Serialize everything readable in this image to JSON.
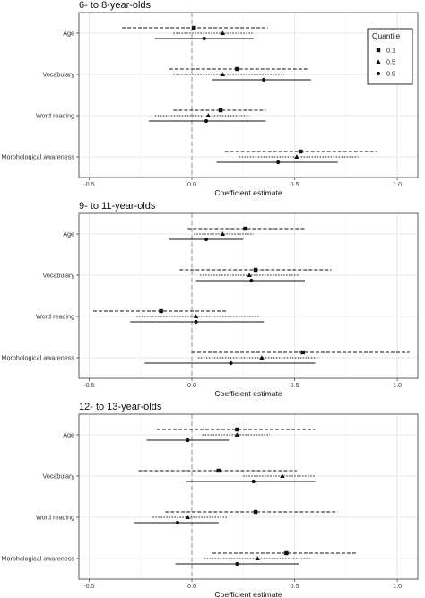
{
  "chart_data": [
    {
      "type": "forest",
      "title": "6- to 8-year-olds",
      "xlabel": "Coefficient estimate",
      "xlim": [
        -0.55,
        1.1
      ],
      "xticks": [
        -0.5,
        0.0,
        0.5,
        1.0
      ],
      "tick_labels": [
        "-0.5",
        "0.0",
        "0.5",
        "1.0"
      ],
      "reference_line": 0,
      "categories": [
        "Age",
        "Vocabulary",
        "Word reading",
        "Morphological awareness"
      ],
      "series": [
        {
          "name": "0.1",
          "linestyle": "dashed",
          "marker": "square",
          "estimates": [
            0.01,
            0.22,
            0.14,
            0.53
          ],
          "lower": [
            -0.34,
            -0.11,
            -0.09,
            0.16
          ],
          "upper": [
            0.37,
            0.57,
            0.36,
            0.9
          ]
        },
        {
          "name": "0.5",
          "linestyle": "dotted",
          "marker": "triangle",
          "estimates": [
            0.15,
            0.15,
            0.08,
            0.51
          ],
          "lower": [
            -0.09,
            -0.09,
            -0.18,
            0.23
          ],
          "upper": [
            0.3,
            0.45,
            0.28,
            0.81
          ]
        },
        {
          "name": "0.9",
          "linestyle": "solid",
          "marker": "circle",
          "estimates": [
            0.06,
            0.35,
            0.07,
            0.42
          ],
          "lower": [
            -0.18,
            0.1,
            -0.21,
            0.12
          ],
          "upper": [
            0.3,
            0.58,
            0.36,
            0.71
          ]
        }
      ],
      "legend": {
        "title": "Quantile",
        "position": "top-right"
      },
      "grid": true
    },
    {
      "type": "forest",
      "title": "9- to 11-year-olds",
      "xlabel": "Coefficient estimate",
      "xlim": [
        -0.55,
        1.1
      ],
      "xticks": [
        -0.5,
        0.0,
        0.5,
        1.0
      ],
      "tick_labels": [
        "-0.5",
        "0.0",
        "0.5",
        "1.0"
      ],
      "reference_line": 0,
      "categories": [
        "Age",
        "Vocabulary",
        "Word reading",
        "Morphological awareness"
      ],
      "series": [
        {
          "name": "0.1",
          "linestyle": "dashed",
          "marker": "square",
          "estimates": [
            0.26,
            0.31,
            -0.15,
            0.54
          ],
          "lower": [
            -0.02,
            -0.06,
            -0.48,
            0.0
          ],
          "upper": [
            0.55,
            0.68,
            0.17,
            1.06
          ]
        },
        {
          "name": "0.5",
          "linestyle": "dotted",
          "marker": "triangle",
          "estimates": [
            0.15,
            0.28,
            0.02,
            0.34
          ],
          "lower": [
            0.01,
            0.04,
            -0.27,
            0.03
          ],
          "upper": [
            0.3,
            0.52,
            0.33,
            0.62
          ]
        },
        {
          "name": "0.9",
          "linestyle": "solid",
          "marker": "circle",
          "estimates": [
            0.07,
            0.29,
            0.02,
            0.19
          ],
          "lower": [
            -0.11,
            0.02,
            -0.3,
            -0.23
          ],
          "upper": [
            0.25,
            0.55,
            0.35,
            0.6
          ]
        }
      ],
      "grid": true
    },
    {
      "type": "forest",
      "title": "12- to 13-year-olds",
      "xlabel": "Coefficient estimate",
      "xlim": [
        -0.55,
        1.1
      ],
      "xticks": [
        -0.5,
        0.0,
        0.5,
        1.0
      ],
      "tick_labels": [
        "-0.5",
        "0.0",
        "0.5",
        "1.0"
      ],
      "reference_line": 0,
      "categories": [
        "Age",
        "Vocabulary",
        "Word reading",
        "Morphological awareness"
      ],
      "series": [
        {
          "name": "0.1",
          "linestyle": "dashed",
          "marker": "square",
          "estimates": [
            0.22,
            0.13,
            0.31,
            0.46
          ],
          "lower": [
            -0.17,
            -0.26,
            -0.13,
            0.1
          ],
          "upper": [
            0.6,
            0.51,
            0.71,
            0.8
          ]
        },
        {
          "name": "0.5",
          "linestyle": "dotted",
          "marker": "triangle",
          "estimates": [
            0.22,
            0.44,
            -0.02,
            0.32
          ],
          "lower": [
            0.05,
            0.25,
            -0.19,
            0.06
          ],
          "upper": [
            0.38,
            0.6,
            0.17,
            0.58
          ]
        },
        {
          "name": "0.9",
          "linestyle": "solid",
          "marker": "circle",
          "estimates": [
            -0.02,
            0.3,
            -0.07,
            0.22
          ],
          "lower": [
            -0.22,
            -0.03,
            -0.28,
            -0.08
          ],
          "upper": [
            0.18,
            0.6,
            0.13,
            0.52
          ]
        }
      ],
      "grid": true
    }
  ]
}
